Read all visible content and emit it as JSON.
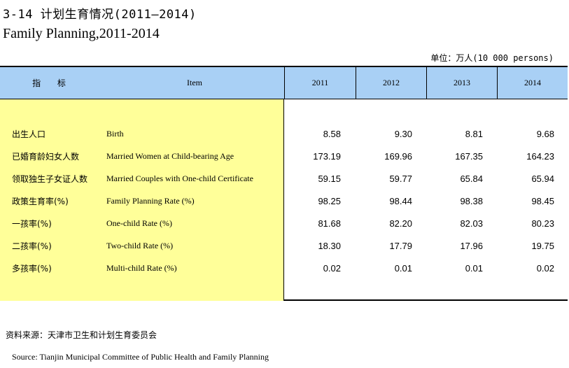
{
  "title_cn": "3-14  计划生育情况(2011—2014)",
  "title_en": "Family Planning,2011-2014",
  "unit": "单位：万人(10 000 persons)",
  "header": {
    "indicator": "指 标",
    "item": "Item",
    "years": [
      "2011",
      "2012",
      "2013",
      "2014"
    ]
  },
  "rows": [
    {
      "cn": "出生人口",
      "en": "Birth",
      "values": [
        "8.58",
        "9.30",
        "8.81",
        "9.68"
      ]
    },
    {
      "cn": "已婚育龄妇女人数",
      "en": "Married Women at Child-bearing Age",
      "values": [
        "173.19",
        "169.96",
        "167.35",
        "164.23"
      ]
    },
    {
      "cn": "领取独生子女证人数",
      "en": "Married Couples with One-child Certificate",
      "values": [
        "59.15",
        "59.77",
        "65.84",
        "65.94"
      ]
    },
    {
      "cn": "政策生育率(%)",
      "en": "Family Planning Rate (%)",
      "values": [
        "98.25",
        "98.44",
        "98.38",
        "98.45"
      ]
    },
    {
      "cn": "一孩率(%)",
      "en": "One-child Rate (%)",
      "values": [
        "81.68",
        "82.20",
        "82.03",
        "80.23"
      ]
    },
    {
      "cn": "二孩率(%)",
      "en": "Two-child Rate (%)",
      "values": [
        "18.30",
        "17.79",
        "17.96",
        "19.75"
      ]
    },
    {
      "cn": "多孩率(%)",
      "en": "Multi-child Rate (%)",
      "values": [
        "0.02",
        "0.01",
        "0.01",
        "0.02"
      ]
    }
  ],
  "source_cn": "资料来源：天津市卫生和计划生育委员会",
  "source_en": "Source: Tianjin Municipal Committee of Public Health and Family Planning",
  "colors": {
    "header_bg": "#a9d0f5",
    "label_bg": "#ffff99"
  }
}
